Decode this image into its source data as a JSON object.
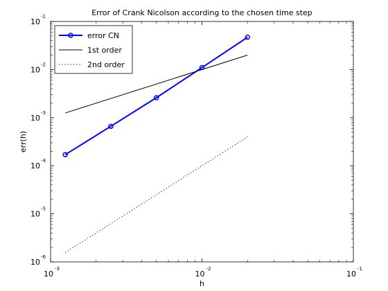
{
  "chart_data": {
    "type": "line",
    "title": "Error of Crank Nicolson according to the chosen time step",
    "xlabel": "h",
    "ylabel": "err(h)",
    "xscale": "log",
    "yscale": "log",
    "xlim": [
      0.001,
      0.1
    ],
    "ylim": [
      1e-06,
      0.1
    ],
    "grid": false,
    "legend_position": "top-left",
    "x_ticks": [
      {
        "base": "10",
        "exp": "-3"
      },
      {
        "base": "10",
        "exp": "-2"
      },
      {
        "base": "10",
        "exp": "-1"
      }
    ],
    "y_ticks": [
      {
        "base": "10",
        "exp": "-6"
      },
      {
        "base": "10",
        "exp": "-5"
      },
      {
        "base": "10",
        "exp": "-4"
      },
      {
        "base": "10",
        "exp": "-3"
      },
      {
        "base": "10",
        "exp": "-2"
      },
      {
        "base": "10",
        "exp": "-1"
      }
    ],
    "series": [
      {
        "name": "error CN",
        "color": "#0000ff",
        "style": "solid-markers",
        "x": [
          0.00125,
          0.0025,
          0.005,
          0.01,
          0.02
        ],
        "y": [
          0.00017,
          0.00066,
          0.0026,
          0.011,
          0.047
        ]
      },
      {
        "name": "1st order",
        "color": "#000000",
        "style": "solid",
        "x": [
          0.00125,
          0.02
        ],
        "y": [
          0.00125,
          0.02
        ]
      },
      {
        "name": "2nd order",
        "color": "#000000",
        "style": "dotted",
        "x": [
          0.00125,
          0.02
        ],
        "y": [
          1.5625e-06,
          0.0004
        ]
      }
    ]
  }
}
